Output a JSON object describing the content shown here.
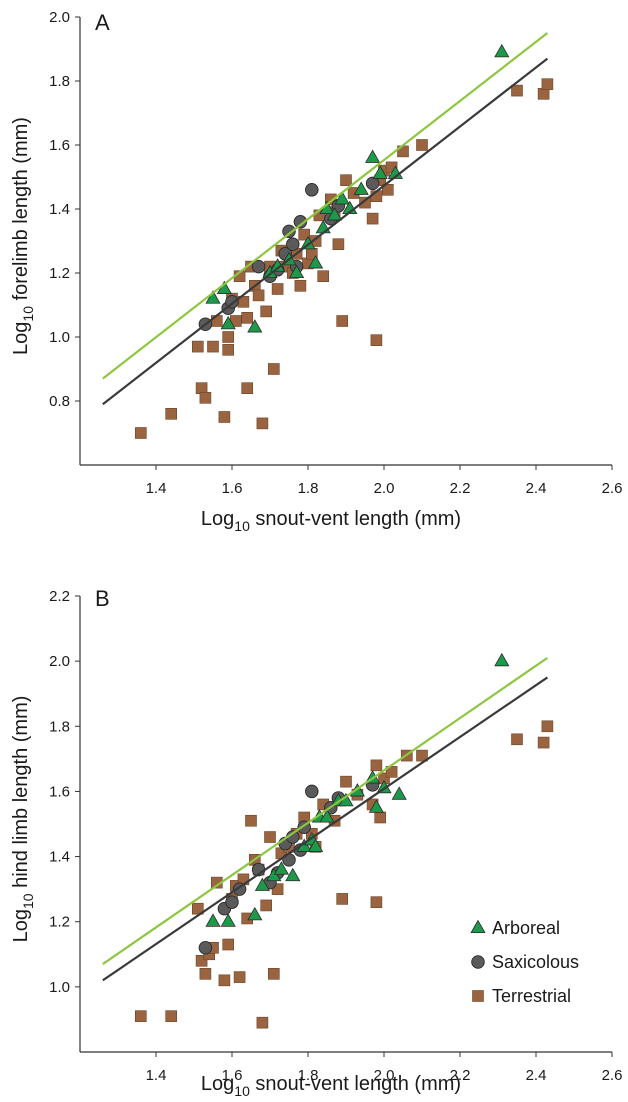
{
  "colors": {
    "arboreal": "#1c9a4a",
    "saxicolous": "#5a5a5a",
    "terrestrial": "#9a6440",
    "arboreal_line": "#8dc63f",
    "common_line": "#3a3a3a",
    "axis": "#333333"
  },
  "legend": [
    {
      "key": "arboreal",
      "label": "Arboreal",
      "shape": "triangle"
    },
    {
      "key": "saxicolous",
      "label": "Saxicolous",
      "shape": "circle"
    },
    {
      "key": "terrestrial",
      "label": "Terrestrial",
      "shape": "square"
    }
  ],
  "chart_data": [
    {
      "type": "scatter",
      "panel_label": "A",
      "xlabel_prefix": "Log",
      "xlabel_sub": "10",
      "xlabel_rest": " snout-vent length (mm)",
      "ylabel_prefix": "Log",
      "ylabel_sub": "10",
      "ylabel_rest": " forelimb length (mm)",
      "xlim": [
        1.2,
        2.6
      ],
      "ylim": [
        0.6,
        2.0
      ],
      "xticks": [
        "1.4",
        "1.6",
        "1.8",
        "2.0",
        "2.2",
        "2.4",
        "2.6"
      ],
      "yticks": [
        "0.8",
        "1.0",
        "1.2",
        "1.4",
        "1.6",
        "1.8",
        "2.0"
      ],
      "lines": [
        {
          "key": "arboreal_line",
          "x": [
            1.26,
            2.43
          ],
          "y": [
            0.87,
            1.95
          ]
        },
        {
          "key": "common_line",
          "x": [
            1.26,
            2.43
          ],
          "y": [
            0.79,
            1.87
          ]
        }
      ],
      "series": [
        {
          "key": "terrestrial",
          "points": [
            [
              1.36,
              0.7
            ],
            [
              1.44,
              0.76
            ],
            [
              1.51,
              0.97
            ],
            [
              1.52,
              0.84
            ],
            [
              1.53,
              0.81
            ],
            [
              1.55,
              0.97
            ],
            [
              1.56,
              1.05
            ],
            [
              1.58,
              0.75
            ],
            [
              1.59,
              0.96
            ],
            [
              1.59,
              1.0
            ],
            [
              1.6,
              1.12
            ],
            [
              1.61,
              1.05
            ],
            [
              1.62,
              1.19
            ],
            [
              1.63,
              1.11
            ],
            [
              1.64,
              0.84
            ],
            [
              1.64,
              1.06
            ],
            [
              1.65,
              1.22
            ],
            [
              1.66,
              1.16
            ],
            [
              1.67,
              1.13
            ],
            [
              1.68,
              0.73
            ],
            [
              1.69,
              1.08
            ],
            [
              1.7,
              1.22
            ],
            [
              1.71,
              0.9
            ],
            [
              1.72,
              1.15
            ],
            [
              1.73,
              1.27
            ],
            [
              1.74,
              1.22
            ],
            [
              1.76,
              1.2
            ],
            [
              1.77,
              1.26
            ],
            [
              1.78,
              1.16
            ],
            [
              1.79,
              1.32
            ],
            [
              1.8,
              1.23
            ],
            [
              1.81,
              1.26
            ],
            [
              1.82,
              1.3
            ],
            [
              1.83,
              1.38
            ],
            [
              1.84,
              1.19
            ],
            [
              1.86,
              1.43
            ],
            [
              1.87,
              1.39
            ],
            [
              1.88,
              1.29
            ],
            [
              1.89,
              1.05
            ],
            [
              1.9,
              1.49
            ],
            [
              1.92,
              1.45
            ],
            [
              1.95,
              1.42
            ],
            [
              1.97,
              1.37
            ],
            [
              1.98,
              1.44
            ],
            [
              1.98,
              0.99
            ],
            [
              1.99,
              1.49
            ],
            [
              2.0,
              1.52
            ],
            [
              2.01,
              1.46
            ],
            [
              2.02,
              1.53
            ],
            [
              2.05,
              1.58
            ],
            [
              2.1,
              1.6
            ],
            [
              2.35,
              1.77
            ],
            [
              2.42,
              1.76
            ],
            [
              2.43,
              1.79
            ]
          ]
        },
        {
          "key": "saxicolous",
          "points": [
            [
              1.53,
              1.04
            ],
            [
              1.59,
              1.09
            ],
            [
              1.6,
              1.11
            ],
            [
              1.67,
              1.22
            ],
            [
              1.7,
              1.19
            ],
            [
              1.72,
              1.21
            ],
            [
              1.74,
              1.26
            ],
            [
              1.75,
              1.33
            ],
            [
              1.76,
              1.29
            ],
            [
              1.77,
              1.22
            ],
            [
              1.78,
              1.36
            ],
            [
              1.81,
              1.46
            ],
            [
              1.86,
              1.37
            ],
            [
              1.88,
              1.41
            ],
            [
              1.97,
              1.48
            ]
          ]
        },
        {
          "key": "arboreal",
          "points": [
            [
              1.55,
              1.12
            ],
            [
              1.58,
              1.15
            ],
            [
              1.59,
              1.04
            ],
            [
              1.66,
              1.03
            ],
            [
              1.7,
              1.2
            ],
            [
              1.72,
              1.22
            ],
            [
              1.75,
              1.24
            ],
            [
              1.77,
              1.2
            ],
            [
              1.8,
              1.29
            ],
            [
              1.82,
              1.23
            ],
            [
              1.84,
              1.34
            ],
            [
              1.85,
              1.4
            ],
            [
              1.87,
              1.38
            ],
            [
              1.89,
              1.43
            ],
            [
              1.91,
              1.4
            ],
            [
              1.94,
              1.46
            ],
            [
              1.97,
              1.56
            ],
            [
              1.99,
              1.51
            ],
            [
              2.03,
              1.51
            ],
            [
              2.31,
              1.89
            ]
          ]
        }
      ]
    },
    {
      "type": "scatter",
      "panel_label": "B",
      "xlabel_prefix": "Log",
      "xlabel_sub": "10",
      "xlabel_rest": " snout-vent length (mm)",
      "ylabel_prefix": "Log",
      "ylabel_sub": "10",
      "ylabel_rest": " hind limb length (mm)",
      "xlim": [
        1.2,
        2.6
      ],
      "ylim": [
        0.8,
        2.2
      ],
      "xticks": [
        "1.4",
        "1.6",
        "1.8",
        "2.0",
        "2.2",
        "2.4",
        "2.6"
      ],
      "yticks": [
        "1.0",
        "1.2",
        "1.4",
        "1.6",
        "1.8",
        "2.0",
        "2.2"
      ],
      "lines": [
        {
          "key": "arboreal_line",
          "x": [
            1.26,
            2.43
          ],
          "y": [
            1.07,
            2.01
          ]
        },
        {
          "key": "common_line",
          "x": [
            1.26,
            2.43
          ],
          "y": [
            1.02,
            1.95
          ]
        }
      ],
      "series": [
        {
          "key": "terrestrial",
          "points": [
            [
              1.36,
              0.91
            ],
            [
              1.44,
              0.91
            ],
            [
              1.51,
              1.24
            ],
            [
              1.52,
              1.08
            ],
            [
              1.53,
              1.04
            ],
            [
              1.54,
              1.1
            ],
            [
              1.55,
              1.12
            ],
            [
              1.56,
              1.32
            ],
            [
              1.58,
              1.02
            ],
            [
              1.59,
              1.13
            ],
            [
              1.6,
              1.27
            ],
            [
              1.61,
              1.31
            ],
            [
              1.62,
              1.03
            ],
            [
              1.63,
              1.33
            ],
            [
              1.64,
              1.21
            ],
            [
              1.65,
              1.51
            ],
            [
              1.66,
              1.39
            ],
            [
              1.67,
              1.36
            ],
            [
              1.68,
              0.89
            ],
            [
              1.69,
              1.25
            ],
            [
              1.7,
              1.46
            ],
            [
              1.71,
              1.04
            ],
            [
              1.72,
              1.3
            ],
            [
              1.73,
              1.41
            ],
            [
              1.75,
              1.43
            ],
            [
              1.77,
              1.47
            ],
            [
              1.79,
              1.52
            ],
            [
              1.81,
              1.47
            ],
            [
              1.82,
              1.43
            ],
            [
              1.84,
              1.56
            ],
            [
              1.87,
              1.51
            ],
            [
              1.89,
              1.27
            ],
            [
              1.9,
              1.63
            ],
            [
              1.93,
              1.59
            ],
            [
              1.97,
              1.56
            ],
            [
              1.98,
              1.68
            ],
            [
              1.98,
              1.26
            ],
            [
              1.99,
              1.52
            ],
            [
              2.0,
              1.64
            ],
            [
              2.02,
              1.66
            ],
            [
              2.06,
              1.71
            ],
            [
              2.1,
              1.71
            ],
            [
              2.35,
              1.76
            ],
            [
              2.42,
              1.75
            ],
            [
              2.43,
              1.8
            ]
          ]
        },
        {
          "key": "saxicolous",
          "points": [
            [
              1.53,
              1.12
            ],
            [
              1.58,
              1.24
            ],
            [
              1.6,
              1.26
            ],
            [
              1.62,
              1.3
            ],
            [
              1.67,
              1.36
            ],
            [
              1.7,
              1.32
            ],
            [
              1.72,
              1.35
            ],
            [
              1.74,
              1.44
            ],
            [
              1.75,
              1.39
            ],
            [
              1.76,
              1.46
            ],
            [
              1.78,
              1.42
            ],
            [
              1.79,
              1.49
            ],
            [
              1.81,
              1.6
            ],
            [
              1.86,
              1.55
            ],
            [
              1.88,
              1.58
            ],
            [
              1.97,
              1.62
            ]
          ]
        },
        {
          "key": "arboreal",
          "points": [
            [
              1.55,
              1.2
            ],
            [
              1.59,
              1.2
            ],
            [
              1.66,
              1.22
            ],
            [
              1.68,
              1.31
            ],
            [
              1.71,
              1.34
            ],
            [
              1.73,
              1.36
            ],
            [
              1.76,
              1.34
            ],
            [
              1.79,
              1.43
            ],
            [
              1.81,
              1.45
            ],
            [
              1.82,
              1.43
            ],
            [
              1.83,
              1.52
            ],
            [
              1.85,
              1.52
            ],
            [
              1.88,
              1.57
            ],
            [
              1.9,
              1.57
            ],
            [
              1.93,
              1.6
            ],
            [
              1.97,
              1.64
            ],
            [
              1.98,
              1.55
            ],
            [
              2.0,
              1.61
            ],
            [
              2.04,
              1.59
            ],
            [
              2.31,
              2.0
            ]
          ]
        }
      ]
    }
  ]
}
